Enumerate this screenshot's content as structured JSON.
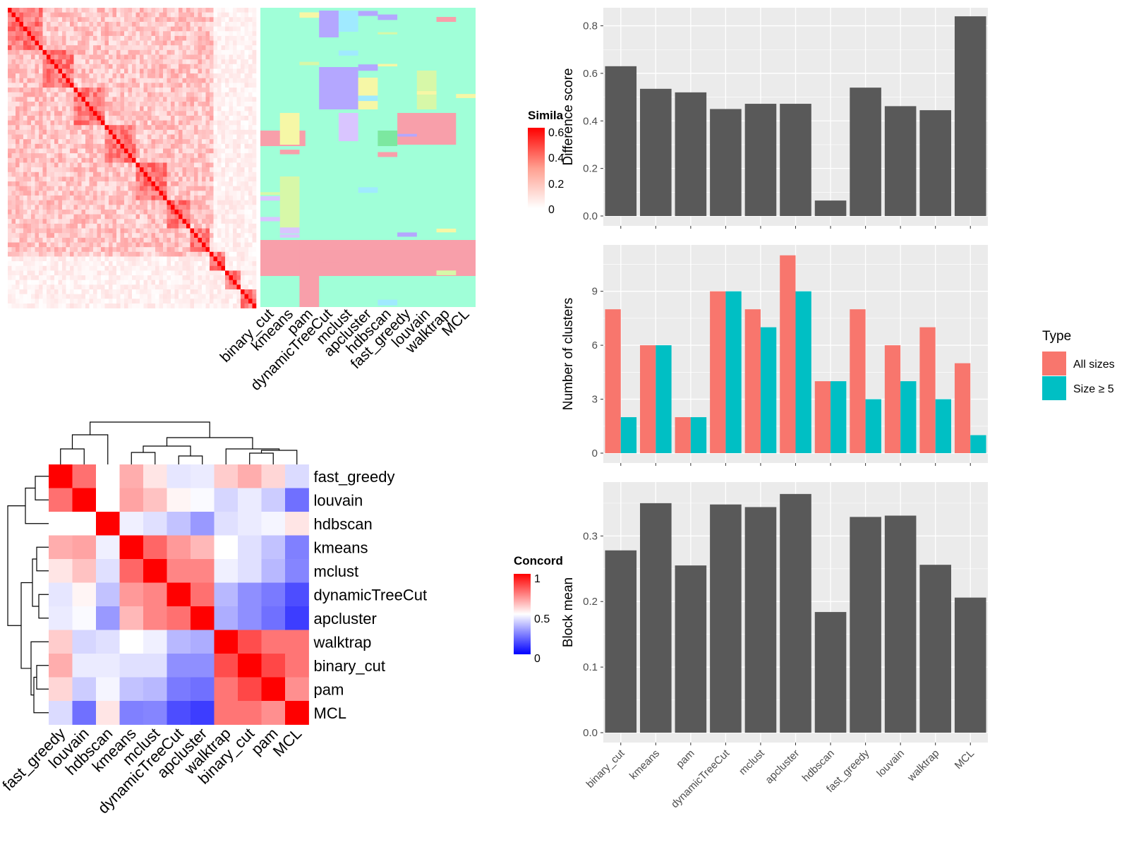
{
  "colors": {
    "panel_bg": "#EBEBEB",
    "grid": "#FFFFFF",
    "bar": "#595959",
    "all_sizes": "#F8766D",
    "size_ge5": "#00BFC4",
    "heat_high": "#FF0000",
    "heat_mid": "#FFFFFF",
    "heat_low": "#0000FF"
  },
  "similarity_heatmap": {
    "legend_title": "Simila",
    "legend_ticks": [
      "0.6",
      "0.4",
      "0.2",
      "0"
    ],
    "method_labels": [
      "binary_cut",
      "kmeans",
      "pam",
      "dynamicTreeCut",
      "mclust",
      "apcluster",
      "hdbscan",
      "fast_greedy",
      "louvain",
      "walktrap",
      "MCL"
    ]
  },
  "concordance_heatmap": {
    "legend_title": "Concord",
    "legend_ticks": [
      "1",
      "0.5",
      "0"
    ],
    "row_labels": [
      "fast_greedy",
      "louvain",
      "hdbscan",
      "kmeans",
      "mclust",
      "dynamicTreeCut",
      "apcluster",
      "walktrap",
      "binary_cut",
      "pam",
      "MCL"
    ],
    "col_labels": [
      "fast_greedy",
      "louvain",
      "hdbscan",
      "kmeans",
      "mclust",
      "dynamicTreeCut",
      "apcluster",
      "walktrap",
      "binary_cut",
      "pam",
      "MCL"
    ],
    "matrix": [
      [
        1.0,
        0.78,
        0.5,
        0.66,
        0.55,
        0.45,
        0.46,
        0.6,
        0.66,
        0.58,
        0.43
      ],
      [
        0.78,
        1.0,
        0.5,
        0.68,
        0.62,
        0.52,
        0.49,
        0.42,
        0.46,
        0.4,
        0.22
      ],
      [
        0.5,
        0.5,
        1.0,
        0.47,
        0.44,
        0.38,
        0.3,
        0.44,
        0.46,
        0.48,
        0.55
      ],
      [
        0.66,
        0.68,
        0.47,
        1.0,
        0.8,
        0.7,
        0.64,
        0.5,
        0.44,
        0.38,
        0.25
      ],
      [
        0.55,
        0.62,
        0.44,
        0.8,
        1.0,
        0.74,
        0.74,
        0.47,
        0.44,
        0.36,
        0.26
      ],
      [
        0.45,
        0.52,
        0.38,
        0.7,
        0.74,
        1.0,
        0.78,
        0.36,
        0.28,
        0.24,
        0.15
      ],
      [
        0.46,
        0.49,
        0.3,
        0.64,
        0.74,
        0.78,
        1.0,
        0.34,
        0.28,
        0.22,
        0.12
      ],
      [
        0.6,
        0.42,
        0.44,
        0.5,
        0.47,
        0.36,
        0.34,
        1.0,
        0.85,
        0.77,
        0.77
      ],
      [
        0.66,
        0.46,
        0.46,
        0.44,
        0.44,
        0.28,
        0.28,
        0.85,
        1.0,
        0.86,
        0.77
      ],
      [
        0.58,
        0.4,
        0.48,
        0.38,
        0.36,
        0.24,
        0.22,
        0.77,
        0.86,
        1.0,
        0.72
      ],
      [
        0.43,
        0.22,
        0.55,
        0.25,
        0.26,
        0.15,
        0.12,
        0.77,
        0.77,
        0.72,
        1.0
      ]
    ]
  },
  "chart_data": [
    {
      "type": "bar",
      "categories": [
        "binary_cut",
        "kmeans",
        "pam",
        "dynamicTreeCut",
        "mclust",
        "apcluster",
        "hdbscan",
        "fast_greedy",
        "louvain",
        "walktrap",
        "MCL"
      ],
      "values": [
        0.63,
        0.535,
        0.52,
        0.45,
        0.472,
        0.472,
        0.065,
        0.54,
        0.462,
        0.445,
        0.84
      ],
      "ylabel": "Difference score",
      "ylim": [
        0,
        0.87
      ],
      "yticks": [
        "0.0",
        "0.2",
        "0.4",
        "0.6",
        "0.8"
      ],
      "grid": true
    },
    {
      "type": "bar",
      "categories": [
        "binary_cut",
        "kmeans",
        "pam",
        "dynamicTreeCut",
        "mclust",
        "apcluster",
        "hdbscan",
        "fast_greedy",
        "louvain",
        "walktrap",
        "MCL"
      ],
      "series": [
        {
          "name": "All sizes",
          "values": [
            8,
            6,
            2,
            9,
            8,
            11,
            4,
            8,
            6,
            7,
            5
          ]
        },
        {
          "name": "Size ≥ 5",
          "values": [
            2,
            6,
            2,
            9,
            7,
            9,
            4,
            3,
            4,
            3,
            1
          ]
        }
      ],
      "ylabel": "Number of clusters",
      "ylim": [
        0,
        11.5
      ],
      "yticks": [
        "0",
        "3",
        "6",
        "9"
      ],
      "legend_title": "Type",
      "legend_position": "right",
      "grid": true
    },
    {
      "type": "bar",
      "categories": [
        "binary_cut",
        "kmeans",
        "pam",
        "dynamicTreeCut",
        "mclust",
        "apcluster",
        "hdbscan",
        "fast_greedy",
        "louvain",
        "walktrap",
        "MCL"
      ],
      "values": [
        0.278,
        0.35,
        0.255,
        0.348,
        0.344,
        0.364,
        0.184,
        0.329,
        0.331,
        0.256,
        0.206
      ],
      "ylabel": "Block mean",
      "ylim": [
        0,
        0.38
      ],
      "yticks": [
        "0.0",
        "0.1",
        "0.2",
        "0.3"
      ],
      "xticklabels": [
        "binary_cut",
        "kmeans",
        "pam",
        "dynamicTreeCut",
        "mclust",
        "apcluster",
        "hdbscan",
        "fast_greedy",
        "louvain",
        "walktrap",
        "MCL"
      ],
      "grid": true
    }
  ]
}
